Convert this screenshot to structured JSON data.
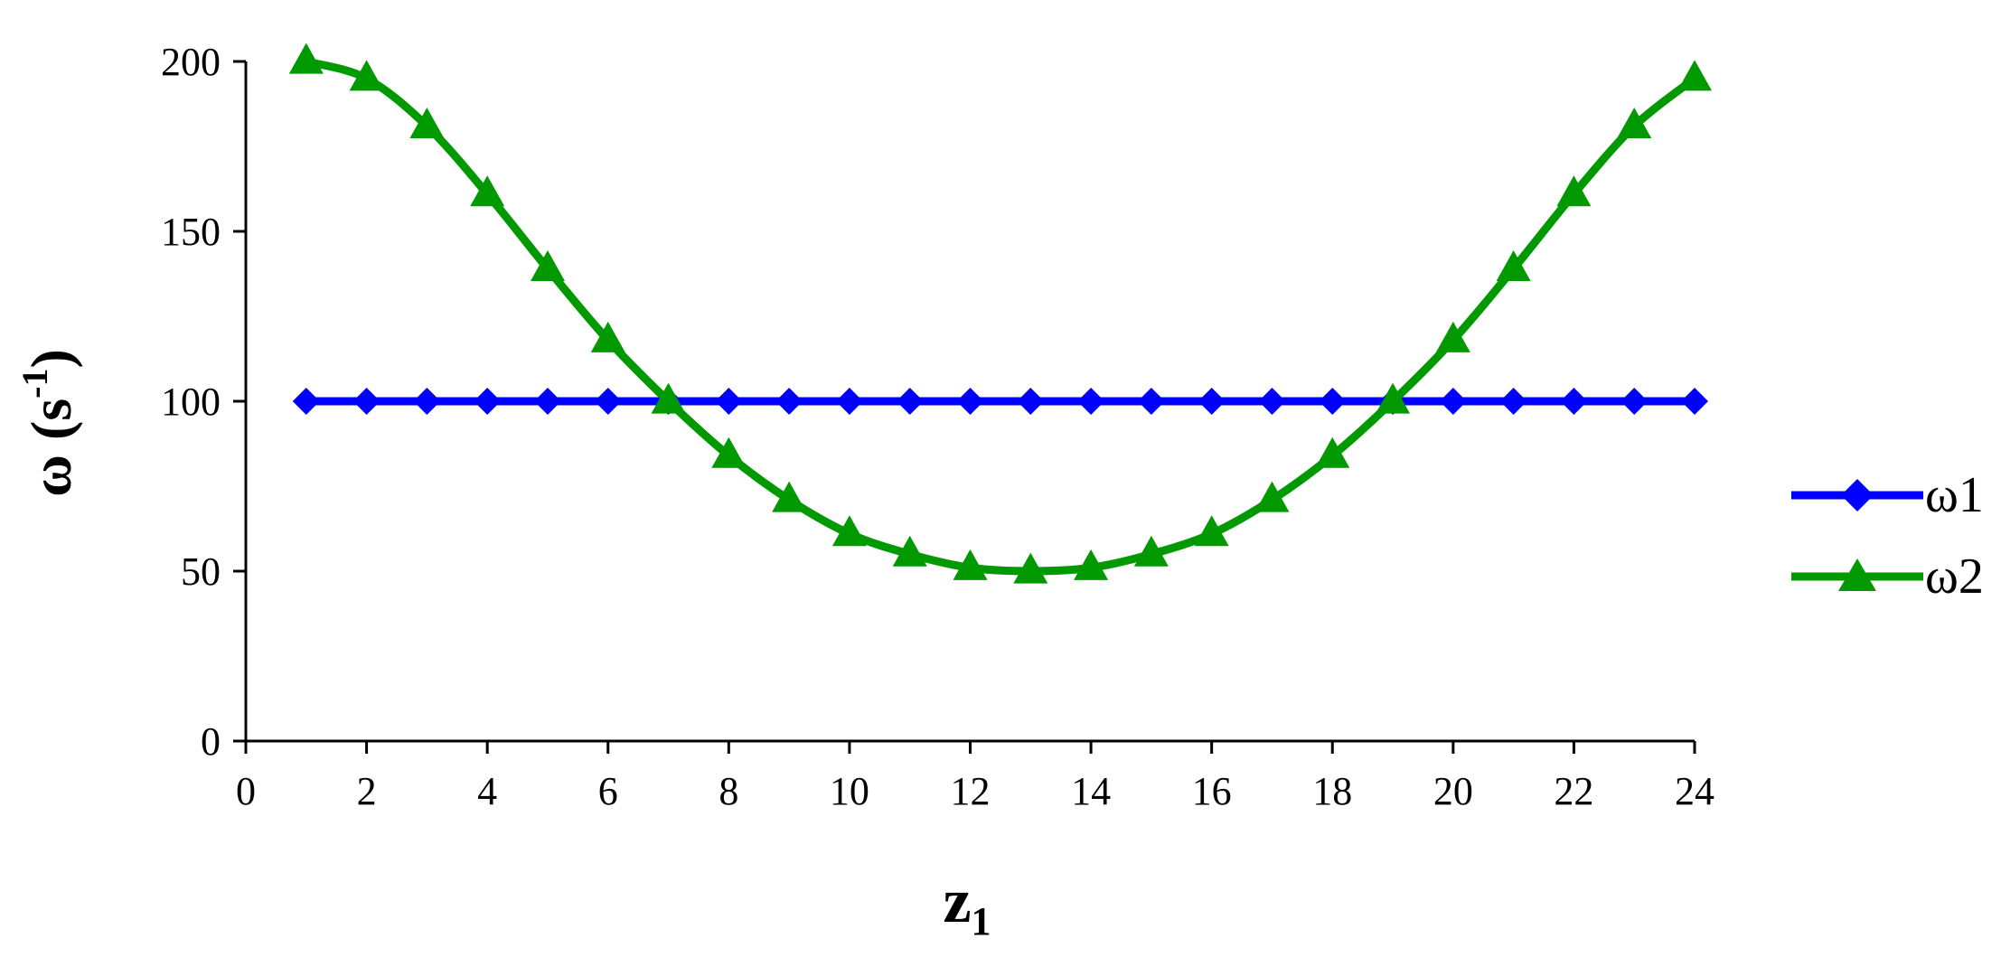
{
  "chart_data": {
    "type": "line",
    "xlabel": "z",
    "xlabel_sub": "1",
    "ylabel": "ω (s",
    "ylabel_sup": "-1",
    "ylabel_close": ")",
    "xlim": [
      0,
      24
    ],
    "ylim": [
      0,
      200
    ],
    "x_ticks": [
      0,
      2,
      4,
      6,
      8,
      10,
      12,
      14,
      16,
      18,
      20,
      22,
      24
    ],
    "y_ticks": [
      0,
      50,
      100,
      150,
      200
    ],
    "grid": false,
    "legend_position": "right",
    "x": [
      1,
      2,
      3,
      4,
      5,
      6,
      7,
      8,
      9,
      10,
      11,
      12,
      13,
      14,
      15,
      16,
      17,
      18,
      19,
      20,
      21,
      22,
      23,
      24
    ],
    "series": [
      {
        "name": "ω1",
        "color": "#0000ff",
        "marker": "diamond",
        "values": [
          100,
          100,
          100,
          100,
          100,
          100,
          100,
          100,
          100,
          100,
          100,
          100,
          100,
          100,
          100,
          100,
          100,
          100,
          100,
          100,
          100,
          100,
          100,
          100
        ]
      },
      {
        "name": "ω2",
        "color": "#009900",
        "marker": "triangle",
        "values": [
          200,
          195,
          181,
          161,
          139,
          118,
          100,
          84,
          71,
          61,
          55,
          51,
          50,
          51,
          55,
          61,
          71,
          84,
          100,
          118,
          139,
          161,
          181,
          195
        ]
      }
    ]
  }
}
